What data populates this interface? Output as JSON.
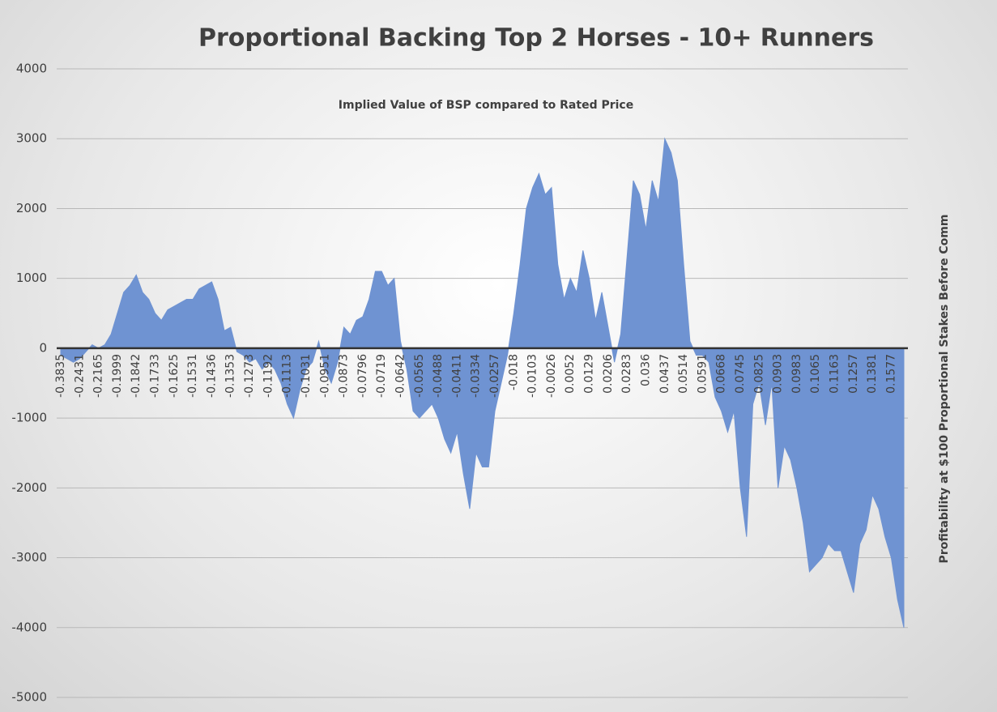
{
  "chart_data": {
    "type": "area",
    "title": "Proportional Backing Top 2 Horses - 10+ Runners",
    "x_label": "Implied Value of BSP compared to Rated Price",
    "y_label": "Profitability at $100 Proportional Stakes Before Comm",
    "categories": [
      "-0.3835",
      null,
      null,
      "-0.2431",
      null,
      null,
      "-0.2165",
      null,
      null,
      "-0.1999",
      null,
      null,
      "-0.1842",
      null,
      null,
      "-0.1733",
      null,
      null,
      "-0.1625",
      null,
      null,
      "-0.1531",
      null,
      null,
      "-0.1436",
      null,
      null,
      "-0.1353",
      null,
      null,
      "-0.1273",
      null,
      null,
      "-0.1192",
      null,
      null,
      "-0.1113",
      null,
      null,
      "-0.1031",
      null,
      null,
      "-0.0951",
      null,
      null,
      "-0.0873",
      null,
      null,
      "-0.0796",
      null,
      null,
      "-0.0719",
      null,
      null,
      "-0.0642",
      null,
      null,
      "-0.0565",
      null,
      null,
      "-0.0488",
      null,
      null,
      "-0.0411",
      null,
      null,
      "-0.0334",
      null,
      null,
      "-0.0257",
      null,
      null,
      "-0.018",
      null,
      null,
      "-0.0103",
      null,
      null,
      "-0.0026",
      null,
      null,
      "0.0052",
      null,
      null,
      "0.0129",
      null,
      null,
      "0.0206",
      null,
      null,
      "0.0283",
      null,
      null,
      "0.036",
      null,
      null,
      "0.0437",
      null,
      null,
      "0.0514",
      null,
      null,
      "0.0591",
      null,
      null,
      "0.0668",
      null,
      null,
      "0.0745",
      null,
      null,
      "0.0825",
      null,
      null,
      "0.0903",
      null,
      null,
      "0.0983",
      null,
      null,
      "0.1065",
      null,
      null,
      "0.1163",
      null,
      null,
      "0.1257",
      null,
      null,
      "0.1381",
      null,
      null,
      "0.1577",
      null,
      null
    ],
    "values": [
      -100,
      -150,
      -200,
      -150,
      -50,
      50,
      0,
      50,
      200,
      500,
      800,
      900,
      1050,
      800,
      700,
      500,
      400,
      550,
      600,
      650,
      700,
      700,
      850,
      900,
      950,
      700,
      250,
      300,
      -50,
      -100,
      -200,
      -150,
      -300,
      -200,
      -300,
      -500,
      -800,
      -1000,
      -600,
      -300,
      -200,
      100,
      -300,
      -500,
      -200,
      300,
      200,
      400,
      450,
      700,
      1100,
      1100,
      900,
      1000,
      100,
      -300,
      -900,
      -1000,
      -900,
      -800,
      -1000,
      -1300,
      -1500,
      -1200,
      -1800,
      -2300,
      -1500,
      -1700,
      -1700,
      -900,
      -500,
      -100,
      500,
      1200,
      2000,
      2300,
      2500,
      2200,
      2300,
      1200,
      700,
      1000,
      800,
      1400,
      1000,
      400,
      800,
      300,
      -200,
      200,
      1300,
      2400,
      2200,
      1700,
      2400,
      2100,
      3000,
      2800,
      2400,
      1200,
      100,
      -100,
      -100,
      -200,
      -700,
      -900,
      -1200,
      -900,
      -2000,
      -2700,
      -800,
      -500,
      -1100,
      -500,
      -2000,
      -1400,
      -1600,
      -2000,
      -2500,
      -3200,
      -3100,
      -3000,
      -2800,
      -2900,
      -2900,
      -3200,
      -3500,
      -2800,
      -2600,
      -2100,
      -2300,
      -2700,
      -3000,
      -3600,
      -4000
    ],
    "color": "#6f93d2",
    "ylim": [
      -5000,
      4000
    ],
    "yticks": [
      -5000,
      -4000,
      -3000,
      -2000,
      -1000,
      0,
      1000,
      2000,
      3000,
      4000
    ],
    "grid": true
  }
}
